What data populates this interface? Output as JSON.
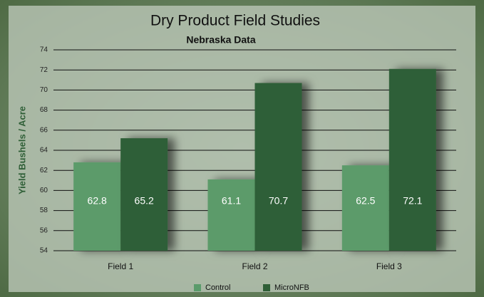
{
  "chart_data": {
    "type": "bar",
    "title": "Dry Product Field Studies",
    "subtitle": "Nebraska Data",
    "y_label": "Yield Bushels / Acre",
    "categories": [
      "Field 1",
      "Field 2",
      "Field 3"
    ],
    "series": [
      {
        "name": "Control",
        "color": "#5b9b6b",
        "values": [
          62.8,
          61.1,
          62.5
        ]
      },
      {
        "name": "MicroNFB",
        "color": "#2f5f37",
        "values": [
          65.2,
          70.7,
          72.1
        ]
      }
    ],
    "ylim": [
      54,
      74
    ],
    "yticks": [
      54,
      56,
      58,
      60,
      62,
      64,
      66,
      68,
      70,
      72,
      74
    ],
    "grid": true,
    "legend": "bottom"
  }
}
